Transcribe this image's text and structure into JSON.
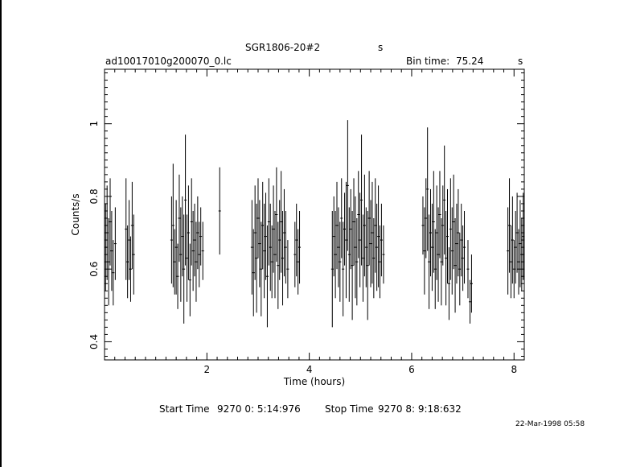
{
  "header": {
    "object": "SGR1806-20#2",
    "object_unit": "s",
    "file": "ad10017010g200070_0.lc",
    "bin_label": "Bin time:",
    "bin_value": "75.24",
    "bin_unit": "s"
  },
  "footer": {
    "start_label": "Start Time",
    "start_value": "9270  0: 5:14:976",
    "stop_label": "Stop Time",
    "stop_value": "9270  8: 9:18:632",
    "stamp": "22-Mar-1998 05:58"
  },
  "chart_data": {
    "type": "scatter",
    "title": "SGR1806-20#2",
    "xlabel": "Time (hours)",
    "ylabel": "Counts/s",
    "xlim": [
      0,
      8.2
    ],
    "ylim": [
      0.35,
      1.15
    ],
    "xticks": [
      2,
      4,
      6,
      8
    ],
    "yticks": [
      0.4,
      0.6,
      0.8,
      1
    ],
    "grid": false,
    "series": [
      {
        "error_bars": true,
        "points": [
          {
            "x": 0.02,
            "y": 0.66,
            "err": 0.12
          },
          {
            "x": 0.05,
            "y": 0.7,
            "err": 0.13
          },
          {
            "x": 0.08,
            "y": 0.62,
            "err": 0.12
          },
          {
            "x": 0.11,
            "y": 0.73,
            "err": 0.12
          },
          {
            "x": 0.14,
            "y": 0.65,
            "err": 0.11
          },
          {
            "x": 0.17,
            "y": 0.59,
            "err": 0.09
          },
          {
            "x": 0.21,
            "y": 0.67,
            "err": 0.1
          },
          {
            "x": 0.42,
            "y": 0.71,
            "err": 0.14
          },
          {
            "x": 0.45,
            "y": 0.62,
            "err": 0.1
          },
          {
            "x": 0.48,
            "y": 0.68,
            "err": 0.11
          },
          {
            "x": 0.51,
            "y": 0.6,
            "err": 0.09
          },
          {
            "x": 0.54,
            "y": 0.72,
            "err": 0.12
          },
          {
            "x": 0.57,
            "y": 0.64,
            "err": 0.11
          },
          {
            "x": 1.31,
            "y": 0.68,
            "err": 0.12
          },
          {
            "x": 1.34,
            "y": 0.72,
            "err": 0.17
          },
          {
            "x": 1.37,
            "y": 0.62,
            "err": 0.09
          },
          {
            "x": 1.4,
            "y": 0.66,
            "err": 0.13
          },
          {
            "x": 1.43,
            "y": 0.58,
            "err": 0.09
          },
          {
            "x": 1.46,
            "y": 0.74,
            "err": 0.12
          },
          {
            "x": 1.49,
            "y": 0.64,
            "err": 0.13
          },
          {
            "x": 1.52,
            "y": 0.69,
            "err": 0.11
          },
          {
            "x": 1.55,
            "y": 0.6,
            "err": 0.15
          },
          {
            "x": 1.58,
            "y": 0.79,
            "err": 0.18
          },
          {
            "x": 1.61,
            "y": 0.63,
            "err": 0.12
          },
          {
            "x": 1.64,
            "y": 0.7,
            "err": 0.13
          },
          {
            "x": 1.67,
            "y": 0.57,
            "err": 0.1
          },
          {
            "x": 1.7,
            "y": 0.73,
            "err": 0.12
          },
          {
            "x": 1.73,
            "y": 0.65,
            "err": 0.11
          },
          {
            "x": 1.76,
            "y": 0.68,
            "err": 0.1
          },
          {
            "x": 1.79,
            "y": 0.62,
            "err": 0.11
          },
          {
            "x": 1.82,
            "y": 0.7,
            "err": 0.1
          },
          {
            "x": 1.85,
            "y": 0.64,
            "err": 0.09
          },
          {
            "x": 1.88,
            "y": 0.69,
            "err": 0.08
          },
          {
            "x": 1.92,
            "y": 0.65,
            "err": 0.08
          },
          {
            "x": 2.25,
            "y": 0.76,
            "err": 0.12
          },
          {
            "x": 2.88,
            "y": 0.66,
            "err": 0.13
          },
          {
            "x": 2.91,
            "y": 0.59,
            "err": 0.12
          },
          {
            "x": 2.94,
            "y": 0.7,
            "err": 0.13
          },
          {
            "x": 2.97,
            "y": 0.63,
            "err": 0.15
          },
          {
            "x": 3.0,
            "y": 0.74,
            "err": 0.11
          },
          {
            "x": 3.03,
            "y": 0.67,
            "err": 0.12
          },
          {
            "x": 3.06,
            "y": 0.6,
            "err": 0.13
          },
          {
            "x": 3.09,
            "y": 0.72,
            "err": 0.12
          },
          {
            "x": 3.12,
            "y": 0.65,
            "err": 0.13
          },
          {
            "x": 3.15,
            "y": 0.69,
            "err": 0.12
          },
          {
            "x": 3.18,
            "y": 0.58,
            "err": 0.14
          },
          {
            "x": 3.21,
            "y": 0.73,
            "err": 0.12
          },
          {
            "x": 3.24,
            "y": 0.66,
            "err": 0.12
          },
          {
            "x": 3.27,
            "y": 0.62,
            "err": 0.1
          },
          {
            "x": 3.3,
            "y": 0.71,
            "err": 0.12
          },
          {
            "x": 3.33,
            "y": 0.64,
            "err": 0.12
          },
          {
            "x": 3.36,
            "y": 0.75,
            "err": 0.13
          },
          {
            "x": 3.39,
            "y": 0.61,
            "err": 0.12
          },
          {
            "x": 3.42,
            "y": 0.68,
            "err": 0.11
          },
          {
            "x": 3.45,
            "y": 0.73,
            "err": 0.14
          },
          {
            "x": 3.48,
            "y": 0.63,
            "err": 0.13
          },
          {
            "x": 3.51,
            "y": 0.7,
            "err": 0.12
          },
          {
            "x": 3.54,
            "y": 0.66,
            "err": 0.1
          },
          {
            "x": 3.58,
            "y": 0.6,
            "err": 0.08
          },
          {
            "x": 3.72,
            "y": 0.64,
            "err": 0.09
          },
          {
            "x": 3.75,
            "y": 0.68,
            "err": 0.1
          },
          {
            "x": 3.78,
            "y": 0.62,
            "err": 0.09
          },
          {
            "x": 3.81,
            "y": 0.66,
            "err": 0.1
          },
          {
            "x": 4.45,
            "y": 0.6,
            "err": 0.16
          },
          {
            "x": 4.48,
            "y": 0.69,
            "err": 0.11
          },
          {
            "x": 4.51,
            "y": 0.64,
            "err": 0.12
          },
          {
            "x": 4.54,
            "y": 0.72,
            "err": 0.12
          },
          {
            "x": 4.57,
            "y": 0.66,
            "err": 0.11
          },
          {
            "x": 4.6,
            "y": 0.62,
            "err": 0.11
          },
          {
            "x": 4.63,
            "y": 0.74,
            "err": 0.11
          },
          {
            "x": 4.66,
            "y": 0.6,
            "err": 0.13
          },
          {
            "x": 4.69,
            "y": 0.71,
            "err": 0.1
          },
          {
            "x": 4.72,
            "y": 0.68,
            "err": 0.16
          },
          {
            "x": 4.75,
            "y": 0.83,
            "err": 0.18
          },
          {
            "x": 4.78,
            "y": 0.64,
            "err": 0.13
          },
          {
            "x": 4.81,
            "y": 0.71,
            "err": 0.11
          },
          {
            "x": 4.84,
            "y": 0.61,
            "err": 0.15
          },
          {
            "x": 4.87,
            "y": 0.73,
            "err": 0.12
          },
          {
            "x": 4.9,
            "y": 0.66,
            "err": 0.14
          },
          {
            "x": 4.93,
            "y": 0.62,
            "err": 0.12
          },
          {
            "x": 4.96,
            "y": 0.75,
            "err": 0.12
          },
          {
            "x": 4.99,
            "y": 0.68,
            "err": 0.13
          },
          {
            "x": 5.02,
            "y": 0.79,
            "err": 0.18
          },
          {
            "x": 5.05,
            "y": 0.63,
            "err": 0.12
          },
          {
            "x": 5.08,
            "y": 0.72,
            "err": 0.14
          },
          {
            "x": 5.11,
            "y": 0.66,
            "err": 0.11
          },
          {
            "x": 5.14,
            "y": 0.61,
            "err": 0.15
          },
          {
            "x": 5.17,
            "y": 0.74,
            "err": 0.13
          },
          {
            "x": 5.2,
            "y": 0.67,
            "err": 0.12
          },
          {
            "x": 5.23,
            "y": 0.7,
            "err": 0.14
          },
          {
            "x": 5.26,
            "y": 0.63,
            "err": 0.11
          },
          {
            "x": 5.29,
            "y": 0.72,
            "err": 0.13
          },
          {
            "x": 5.32,
            "y": 0.66,
            "err": 0.12
          },
          {
            "x": 5.35,
            "y": 0.69,
            "err": 0.14
          },
          {
            "x": 5.38,
            "y": 0.62,
            "err": 0.1
          },
          {
            "x": 5.41,
            "y": 0.68,
            "err": 0.1
          },
          {
            "x": 5.45,
            "y": 0.64,
            "err": 0.08
          },
          {
            "x": 6.22,
            "y": 0.72,
            "err": 0.08
          },
          {
            "x": 6.25,
            "y": 0.65,
            "err": 0.12
          },
          {
            "x": 6.28,
            "y": 0.74,
            "err": 0.11
          },
          {
            "x": 6.31,
            "y": 0.82,
            "err": 0.17
          },
          {
            "x": 6.34,
            "y": 0.62,
            "err": 0.13
          },
          {
            "x": 6.37,
            "y": 0.7,
            "err": 0.12
          },
          {
            "x": 6.4,
            "y": 0.66,
            "err": 0.12
          },
          {
            "x": 6.43,
            "y": 0.73,
            "err": 0.14
          },
          {
            "x": 6.46,
            "y": 0.6,
            "err": 0.11
          },
          {
            "x": 6.49,
            "y": 0.7,
            "err": 0.13
          },
          {
            "x": 6.52,
            "y": 0.64,
            "err": 0.13
          },
          {
            "x": 6.55,
            "y": 0.75,
            "err": 0.12
          },
          {
            "x": 6.58,
            "y": 0.62,
            "err": 0.12
          },
          {
            "x": 6.61,
            "y": 0.72,
            "err": 0.11
          },
          {
            "x": 6.64,
            "y": 0.79,
            "err": 0.15
          },
          {
            "x": 6.67,
            "y": 0.63,
            "err": 0.13
          },
          {
            "x": 6.7,
            "y": 0.69,
            "err": 0.13
          },
          {
            "x": 6.73,
            "y": 0.56,
            "err": 0.1
          },
          {
            "x": 6.76,
            "y": 0.71,
            "err": 0.14
          },
          {
            "x": 6.79,
            "y": 0.65,
            "err": 0.12
          },
          {
            "x": 6.82,
            "y": 0.73,
            "err": 0.13
          },
          {
            "x": 6.85,
            "y": 0.61,
            "err": 0.13
          },
          {
            "x": 6.88,
            "y": 0.67,
            "err": 0.11
          },
          {
            "x": 6.91,
            "y": 0.7,
            "err": 0.12
          },
          {
            "x": 6.94,
            "y": 0.6,
            "err": 0.1
          },
          {
            "x": 6.97,
            "y": 0.68,
            "err": 0.1
          },
          {
            "x": 7.0,
            "y": 0.63,
            "err": 0.09
          },
          {
            "x": 7.03,
            "y": 0.66,
            "err": 0.1
          },
          {
            "x": 7.1,
            "y": 0.6,
            "err": 0.08
          },
          {
            "x": 7.14,
            "y": 0.51,
            "err": 0.06
          },
          {
            "x": 7.17,
            "y": 0.56,
            "err": 0.08
          },
          {
            "x": 7.88,
            "y": 0.65,
            "err": 0.12
          },
          {
            "x": 7.91,
            "y": 0.72,
            "err": 0.13
          },
          {
            "x": 7.94,
            "y": 0.62,
            "err": 0.1
          },
          {
            "x": 7.97,
            "y": 0.68,
            "err": 0.12
          },
          {
            "x": 8.0,
            "y": 0.6,
            "err": 0.08
          },
          {
            "x": 8.03,
            "y": 0.66,
            "err": 0.1
          },
          {
            "x": 8.06,
            "y": 0.7,
            "err": 0.11
          },
          {
            "x": 8.09,
            "y": 0.62,
            "err": 0.09
          },
          {
            "x": 8.12,
            "y": 0.67,
            "err": 0.12
          },
          {
            "x": 8.15,
            "y": 0.64,
            "err": 0.1
          },
          {
            "x": 8.18,
            "y": 0.69,
            "err": 0.12
          }
        ]
      }
    ]
  }
}
